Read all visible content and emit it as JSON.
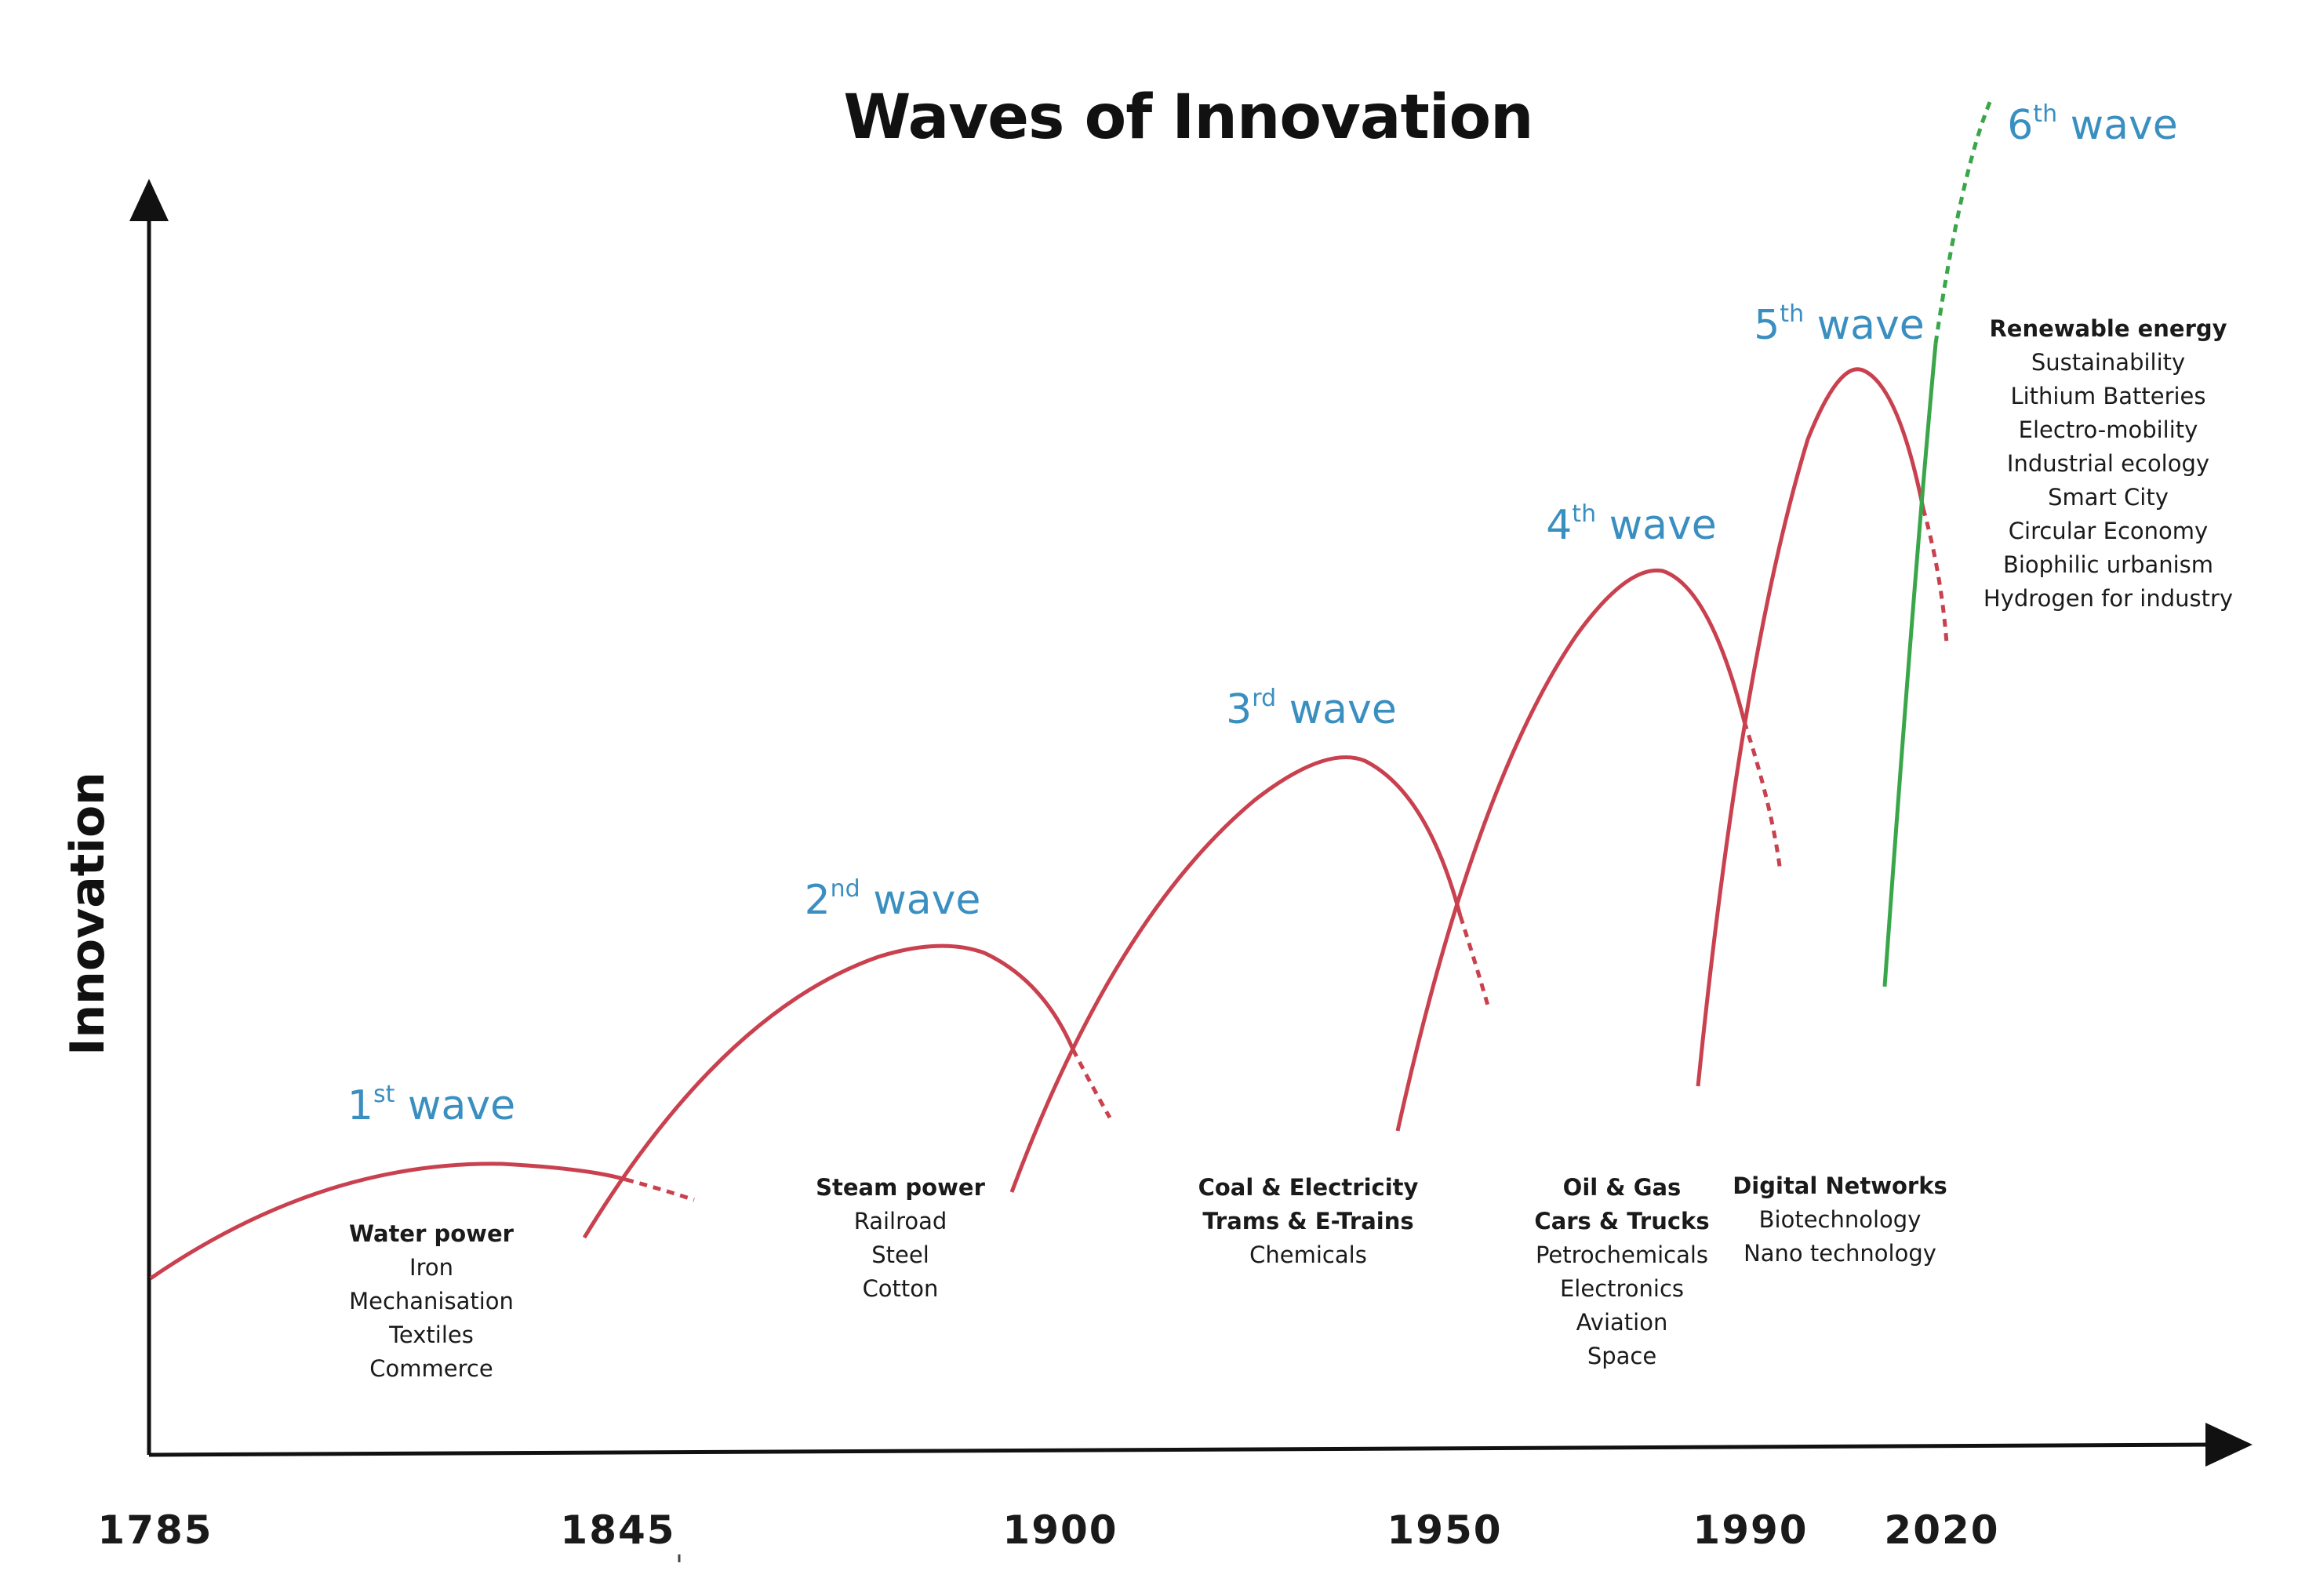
{
  "title": "Waves of Innovation",
  "y_axis_label": "Innovation",
  "years": [
    "1785",
    "1845",
    "1900",
    "1950",
    "1990",
    "2020"
  ],
  "waves": [
    {
      "num": "1",
      "suffix": "st",
      "word": "wave",
      "technologies": [
        "Water power",
        "Iron",
        "Mechanisation",
        "Textiles",
        "Commerce"
      ]
    },
    {
      "num": "2",
      "suffix": "nd",
      "word": "wave",
      "technologies": [
        "Steam power",
        "Railroad",
        "Steel",
        "Cotton"
      ]
    },
    {
      "num": "3",
      "suffix": "rd",
      "word": "wave",
      "technologies": [
        "Coal & Electricity",
        "Trams & E-Trains",
        "Chemicals"
      ]
    },
    {
      "num": "4",
      "suffix": "th",
      "word": "wave",
      "technologies": [
        "Oil & Gas",
        "Cars & Trucks",
        "Petrochemicals",
        "Electronics",
        "Aviation",
        "Space"
      ]
    },
    {
      "num": "5",
      "suffix": "th",
      "word": "wave",
      "technologies": [
        "Digital Networks",
        "Biotechnology",
        "Nano technology"
      ]
    },
    {
      "num": "6",
      "suffix": "th",
      "word": "wave",
      "technologies": [
        "Renewable energy",
        "Sustainability",
        "Lithium Batteries",
        "Electro-mobility",
        "Industrial ecology",
        "Smart City",
        "Circular Economy",
        "Biophilic urbanism",
        "Hydrogen for industry"
      ]
    }
  ],
  "colors": {
    "wave_curve": "#c9414f",
    "sixth_wave_curve": "#3aa64a",
    "wave_label": "#3a8fc1",
    "axis": "#111111"
  }
}
